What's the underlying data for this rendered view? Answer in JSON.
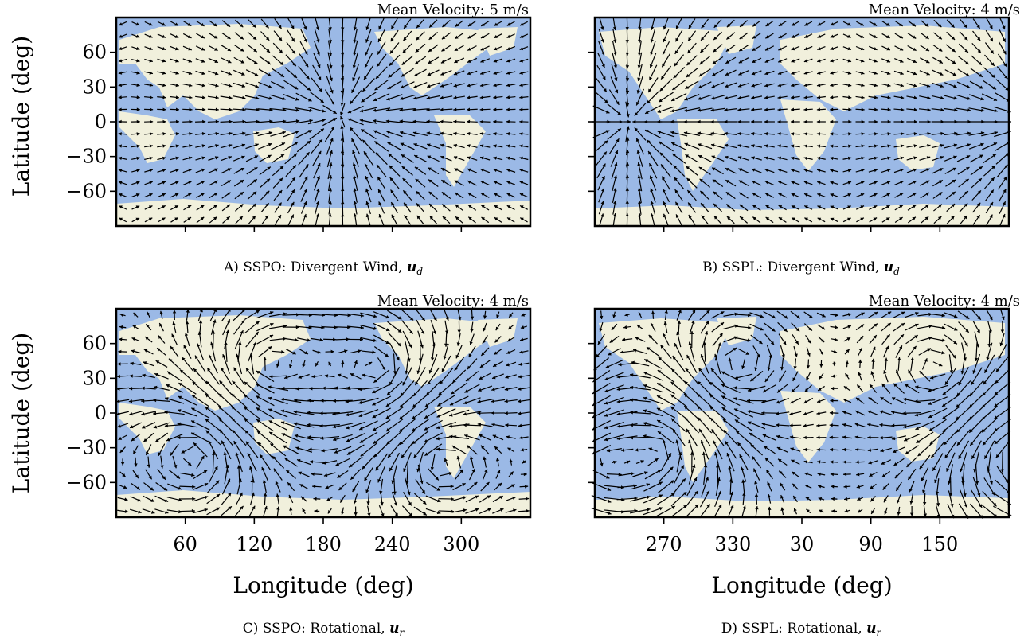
{
  "figure": {
    "colors": {
      "ocean": "#9bb9e6",
      "land": "#f1f0dc",
      "arrow": "#000000",
      "frame": "#000000"
    }
  },
  "chart_data": [
    {
      "id": "A",
      "type": "quiver",
      "mean_velocity_label": "Mean Velocity: 5 m/s",
      "caption_prefix": "A) SSPO: Divergent Wind, ",
      "caption_symbol": "u",
      "caption_sub": "d",
      "ylabel": "Latitude (deg)",
      "xlabel": "",
      "yticks": [
        60,
        30,
        0,
        -30,
        -60
      ],
      "xticks": [
        60,
        120,
        180,
        240,
        300
      ],
      "show_ytick_labels": true,
      "show_xtick_labels": false,
      "xlim": [
        0,
        360
      ],
      "ylim": [
        -90,
        90
      ],
      "field": "divergent",
      "centers": [
        {
          "lon": 195,
          "lat": 5,
          "sign": 1
        }
      ]
    },
    {
      "id": "B",
      "type": "quiver",
      "mean_velocity_label": "Mean Velocity: 4 m/s",
      "caption_prefix": "B) SSPL: Divergent Wind, ",
      "caption_symbol": "u",
      "caption_sub": "d",
      "ylabel": "",
      "xlabel": "",
      "yticks": [
        60,
        30,
        0,
        -30,
        -60
      ],
      "xticks": [
        270,
        330,
        30,
        90,
        150
      ],
      "show_ytick_labels": false,
      "show_xtick_labels": false,
      "xlim": [
        0,
        360
      ],
      "ylim": [
        -90,
        90
      ],
      "field": "divergent",
      "centers": [
        {
          "lon": 30,
          "lat": 0,
          "sign": 1
        }
      ]
    },
    {
      "id": "C",
      "type": "quiver",
      "mean_velocity_label": "Mean Velocity: 4 m/s",
      "caption_prefix": "C) SSPO: Rotational, ",
      "caption_symbol": "u",
      "caption_sub": "r",
      "ylabel": "Latitude (deg)",
      "xlabel": "Longitude (deg)",
      "yticks": [
        60,
        30,
        0,
        -30,
        -60
      ],
      "xticks": [
        60,
        120,
        180,
        240,
        300
      ],
      "show_ytick_labels": true,
      "show_xtick_labels": true,
      "xlim": [
        0,
        360
      ],
      "ylim": [
        -90,
        90
      ],
      "field": "rotational",
      "centers": [
        {
          "lon": 70,
          "lat": -35,
          "sign": 1
        },
        {
          "lon": 230,
          "lat": 35,
          "sign": -1
        },
        {
          "lon": 280,
          "lat": -40,
          "sign": 1
        },
        {
          "lon": 130,
          "lat": 40,
          "sign": -1
        }
      ]
    },
    {
      "id": "D",
      "type": "quiver",
      "mean_velocity_label": "Mean Velocity: 4 m/s",
      "caption_prefix": "D) SSPL: Rotational, ",
      "caption_symbol": "u",
      "caption_sub": "r",
      "ylabel": "",
      "xlabel": "Longitude (deg)",
      "yticks": [
        60,
        30,
        0,
        -30,
        -60
      ],
      "xticks": [
        270,
        330,
        30,
        90,
        150
      ],
      "show_ytick_labels": false,
      "show_xtick_labels": true,
      "xlim": [
        0,
        360
      ],
      "ylim": [
        -90,
        90
      ],
      "field": "rotational",
      "centers": [
        {
          "lon": 300,
          "lat": 35,
          "sign": -1
        },
        {
          "lon": 60,
          "lat": -30,
          "sign": 1
        },
        {
          "lon": 120,
          "lat": 40,
          "sign": -1
        },
        {
          "lon": 0,
          "lat": -40,
          "sign": 1
        }
      ]
    }
  ]
}
